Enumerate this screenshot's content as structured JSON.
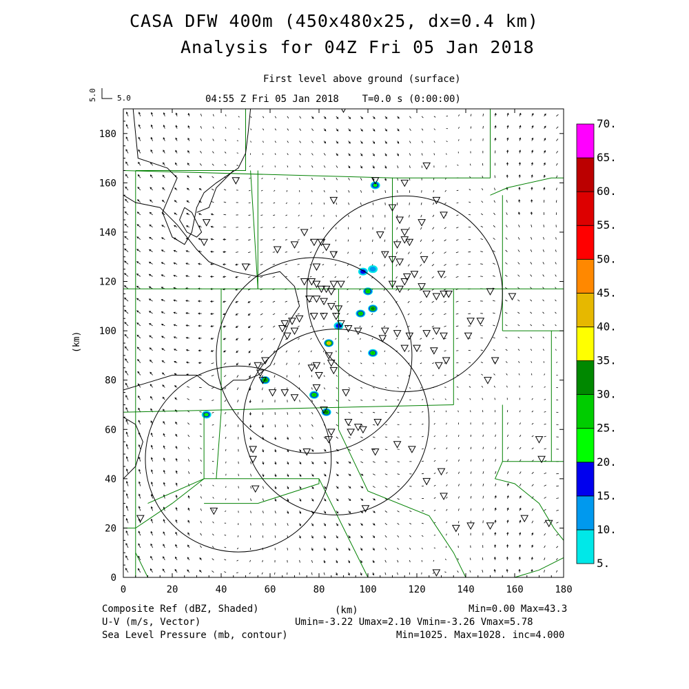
{
  "header": {
    "title_line1": "CASA DFW 400m (450x480x25, dx=0.4 km)",
    "title_line2": "Analysis for 04Z Fri 05 Jan 2018",
    "level_label": "First level above ground (surface)",
    "time_label": "04:55 Z Fri 05 Jan 2018    T=0.0 s (0:00:00)",
    "vector_scale_label": "5.0",
    "vector_scale_label_rot": "5.0"
  },
  "footer": {
    "left_line1": "Composite Ref (dBZ, Shaded)",
    "left_line2": "U-V (m/s, Vector)",
    "left_line3": "Sea Level Pressure (mb, contour)",
    "center_unit": "(km)",
    "right_line1": "Min=0.00 Max=43.3",
    "right_line2": "Umin=-3.22 Umax=2.10 Vmin=-3.26 Vmax=5.78",
    "right_line3": "Min=1025. Max=1028. inc=4.000"
  },
  "colors": {
    "county_lines": "#008000",
    "contours": "#000000",
    "vectors": "#000000"
  },
  "chart_data": {
    "type": "heatmap",
    "xlabel": "",
    "ylabel": "(km)",
    "xlim": [
      0,
      180
    ],
    "ylim": [
      0,
      190
    ],
    "x_ticks": [
      "0",
      "20",
      "40",
      "60",
      "80",
      "100",
      "120",
      "140",
      "160",
      "180"
    ],
    "y_ticks": [
      "0",
      "20",
      "40",
      "60",
      "80",
      "100",
      "120",
      "140",
      "160",
      "180"
    ],
    "colorbar": {
      "levels": [
        "5.",
        "10.",
        "15.",
        "20.",
        "25.",
        "30.",
        "35.",
        "40.",
        "45.",
        "50.",
        "55.",
        "60.",
        "65.",
        "70."
      ],
      "colors": [
        "#00e8e8",
        "#0099ee",
        "#0000ee",
        "#00ff00",
        "#00cc00",
        "#008800",
        "#ffff00",
        "#e6b800",
        "#ff8800",
        "#ff0000",
        "#dd0000",
        "#bb0000",
        "#ff00ff"
      ]
    },
    "radar_rings": [
      {
        "cx": 47,
        "cy": 48,
        "r": 38
      },
      {
        "cx": 78,
        "cy": 90,
        "r": 40
      },
      {
        "cx": 87,
        "cy": 63,
        "r": 38
      },
      {
        "cx": 115,
        "cy": 115,
        "r": 40
      }
    ],
    "echoes": [
      {
        "x": 103,
        "y": 159,
        "dbz": 20
      },
      {
        "x": 98,
        "y": 124,
        "dbz": 15
      },
      {
        "x": 102,
        "y": 125,
        "dbz": 10
      },
      {
        "x": 100,
        "y": 116,
        "dbz": 25
      },
      {
        "x": 102,
        "y": 109,
        "dbz": 30
      },
      {
        "x": 97,
        "y": 107,
        "dbz": 25
      },
      {
        "x": 88,
        "y": 102,
        "dbz": 15
      },
      {
        "x": 84,
        "y": 95,
        "dbz": 43
      },
      {
        "x": 102,
        "y": 91,
        "dbz": 25
      },
      {
        "x": 58,
        "y": 80,
        "dbz": 30
      },
      {
        "x": 78,
        "y": 74,
        "dbz": 25
      },
      {
        "x": 83,
        "y": 67,
        "dbz": 30
      },
      {
        "x": 34,
        "y": 66,
        "dbz": 20
      }
    ],
    "stations": [
      [
        90,
        190
      ],
      [
        124,
        167
      ],
      [
        103,
        161
      ],
      [
        115,
        160
      ],
      [
        86,
        153
      ],
      [
        128,
        153
      ],
      [
        110,
        150
      ],
      [
        113,
        145
      ],
      [
        122,
        144
      ],
      [
        131,
        147
      ],
      [
        115,
        140
      ],
      [
        105,
        139
      ],
      [
        112,
        135
      ],
      [
        115,
        137
      ],
      [
        117,
        136
      ],
      [
        107,
        131
      ],
      [
        110,
        129
      ],
      [
        113,
        128
      ],
      [
        123,
        129
      ],
      [
        78,
        136
      ],
      [
        81,
        136
      ],
      [
        83,
        134
      ],
      [
        86,
        131
      ],
      [
        74,
        140
      ],
      [
        70,
        135
      ],
      [
        63,
        133
      ],
      [
        50,
        126
      ],
      [
        46,
        161
      ],
      [
        34,
        144
      ],
      [
        33,
        136
      ],
      [
        79,
        126
      ],
      [
        110,
        119
      ],
      [
        113,
        117
      ],
      [
        115,
        120
      ],
      [
        116,
        122
      ],
      [
        119,
        123
      ],
      [
        122,
        118
      ],
      [
        130,
        123
      ],
      [
        131,
        115
      ],
      [
        124,
        115
      ],
      [
        128,
        114
      ],
      [
        133,
        115
      ],
      [
        150,
        116
      ],
      [
        159,
        114
      ],
      [
        74,
        120
      ],
      [
        77,
        120
      ],
      [
        79,
        119
      ],
      [
        81,
        117
      ],
      [
        83,
        117
      ],
      [
        85,
        116
      ],
      [
        86,
        119
      ],
      [
        89,
        119
      ],
      [
        76,
        113
      ],
      [
        79,
        113
      ],
      [
        82,
        112
      ],
      [
        85,
        110
      ],
      [
        88,
        109
      ],
      [
        72,
        105
      ],
      [
        69,
        104
      ],
      [
        66,
        103
      ],
      [
        65,
        101
      ],
      [
        67,
        98
      ],
      [
        70,
        100
      ],
      [
        78,
        106
      ],
      [
        82,
        106
      ],
      [
        87,
        106
      ],
      [
        89,
        103
      ],
      [
        92,
        101
      ],
      [
        96,
        100
      ],
      [
        107,
        100
      ],
      [
        112,
        99
      ],
      [
        117,
        98
      ],
      [
        124,
        99
      ],
      [
        128,
        100
      ],
      [
        131,
        98
      ],
      [
        106,
        97
      ],
      [
        115,
        93
      ],
      [
        120,
        93
      ],
      [
        127,
        92
      ],
      [
        132,
        88
      ],
      [
        129,
        86
      ],
      [
        141,
        98
      ],
      [
        142,
        104
      ],
      [
        146,
        104
      ],
      [
        149,
        80
      ],
      [
        152,
        88
      ],
      [
        170,
        56
      ],
      [
        171,
        48
      ],
      [
        164,
        24
      ],
      [
        84,
        90
      ],
      [
        85,
        87
      ],
      [
        86,
        84
      ],
      [
        79,
        86
      ],
      [
        77,
        85
      ],
      [
        80,
        82
      ],
      [
        79,
        77
      ],
      [
        70,
        73
      ],
      [
        66,
        75
      ],
      [
        61,
        75
      ],
      [
        57,
        80
      ],
      [
        58,
        88
      ],
      [
        55,
        86
      ],
      [
        56,
        83
      ],
      [
        53,
        48
      ],
      [
        53,
        52
      ],
      [
        54,
        36
      ],
      [
        37,
        27
      ],
      [
        7,
        24
      ],
      [
        104,
        63
      ],
      [
        98,
        60
      ],
      [
        96,
        61
      ],
      [
        92,
        63
      ],
      [
        93,
        59
      ],
      [
        91,
        75
      ],
      [
        82,
        68
      ],
      [
        84,
        56
      ],
      [
        85,
        59
      ],
      [
        75,
        51
      ],
      [
        112,
        54
      ],
      [
        118,
        52
      ],
      [
        130,
        43
      ],
      [
        124,
        39
      ],
      [
        131,
        33
      ],
      [
        103,
        51
      ],
      [
        99,
        28
      ],
      [
        128,
        2
      ],
      [
        150,
        21
      ],
      [
        136,
        20
      ],
      [
        142,
        21
      ],
      [
        174,
        22
      ]
    ]
  }
}
